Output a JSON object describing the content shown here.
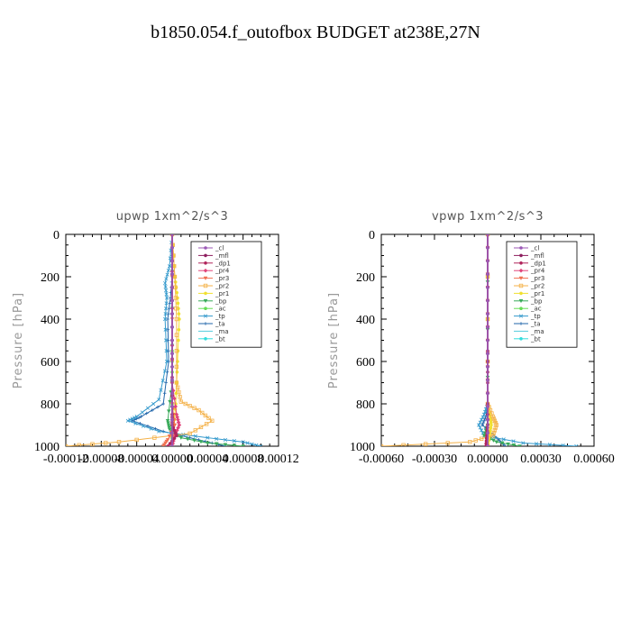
{
  "page_title": "b1850.054.f_outofbox  BUDGET at238E,27N",
  "colors": {
    "_cl": "#9b59b6",
    "_mfl": "#8e1f5f",
    "_dp1": "#b0245b",
    "_pr4": "#e0447a",
    "_pr3": "#f07050",
    "_pr2": "#f4b24a",
    "_pr1": "#f0e030",
    "_bp": "#3aaa5a",
    "_ac": "#66dd55",
    "_tp": "#3399cc",
    "_ta": "#2266aa",
    "_ma": "#55ccdd",
    "_bt": "#33dddd"
  },
  "chart_data": [
    {
      "type": "line",
      "title": "upwp   1xm^2/s^3",
      "ylabel": "Pressure [hPa]",
      "xlabel": "",
      "ylim": [
        1000,
        0
      ],
      "xlim": [
        -0.00012,
        0.00012
      ],
      "xtick_labels": [
        "-0.00012",
        "-0.00008",
        "-0.00004",
        "0.00000",
        "0.00004",
        "0.00008",
        "0.00012"
      ],
      "xticks": [
        -0.00012,
        -8e-05,
        -4e-05,
        0,
        4e-05,
        8e-05,
        0.00012
      ],
      "ytick_labels": [
        "0",
        "200",
        "400",
        "600",
        "800",
        "1000"
      ],
      "yticks": [
        0,
        200,
        400,
        600,
        800,
        1000
      ],
      "legend_position": "top-right",
      "series": [
        {
          "name": "_cl",
          "x": [
            0,
            0,
            0
          ],
          "y": [
            0,
            500,
            1000
          ]
        },
        {
          "name": "_mfl",
          "x": [
            0,
            0,
            0
          ],
          "y": [
            0,
            500,
            1000
          ]
        },
        {
          "name": "_dp1",
          "x": [
            0,
            0,
            0,
            0,
            5e-06,
            -5e-06
          ],
          "y": [
            0,
            500,
            850,
            900,
            950,
            1000
          ]
        },
        {
          "name": "_pr4",
          "x": [
            0,
            0,
            5e-06,
            8e-06,
            3e-06,
            0
          ],
          "y": [
            0,
            700,
            850,
            900,
            950,
            1000
          ]
        },
        {
          "name": "_pr3",
          "x": [
            0,
            0,
            3e-06,
            -5e-06,
            -1e-05
          ],
          "y": [
            0,
            800,
            900,
            970,
            1000
          ]
        },
        {
          "name": "_pr2",
          "x": [
            0,
            3e-06,
            5e-06,
            5e-06,
            1e-05,
            3e-05,
            4.5e-05,
            2e-05,
            -6e-05,
            -0.00012
          ],
          "y": [
            0,
            200,
            400,
            700,
            790,
            830,
            880,
            940,
            980,
            1000
          ]
        },
        {
          "name": "_pr1",
          "x": [
            0,
            3e-06,
            6e-06,
            8e-06,
            6e-06,
            4e-06,
            2e-06,
            0
          ],
          "y": [
            0,
            200,
            300,
            400,
            600,
            800,
            900,
            1000
          ]
        },
        {
          "name": "_bp",
          "x": [
            0,
            0,
            -5e-06,
            -3e-06,
            1e-05,
            4e-05,
            8e-05
          ],
          "y": [
            0,
            700,
            880,
            920,
            960,
            985,
            1000
          ]
        },
        {
          "name": "_ac",
          "x": [
            0,
            0,
            0,
            0
          ],
          "y": [
            0,
            500,
            900,
            1000
          ]
        },
        {
          "name": "_tp",
          "x": [
            0,
            -3e-06,
            -8e-06,
            -6e-06,
            -8e-06,
            -6e-06,
            -1.5e-05,
            -4e-05,
            -5e-05,
            -1.5e-05,
            4e-05,
            8e-05,
            0.0001
          ],
          "y": [
            0,
            150,
            230,
            300,
            400,
            600,
            780,
            860,
            880,
            930,
            960,
            980,
            1000
          ]
        },
        {
          "name": "_ta",
          "x": [
            0,
            0,
            -2e-06,
            -5e-06,
            -4e-06,
            -1e-05,
            -3.5e-05,
            -4.5e-05,
            -1e-05,
            3e-05,
            6e-05
          ],
          "y": [
            0,
            200,
            300,
            400,
            600,
            800,
            860,
            880,
            930,
            970,
            1000
          ]
        },
        {
          "name": "_ma",
          "x": [
            0,
            0,
            0
          ],
          "y": [
            0,
            500,
            1000
          ]
        },
        {
          "name": "_bt",
          "x": [
            0,
            0,
            0
          ],
          "y": [
            0,
            500,
            1000
          ]
        }
      ]
    },
    {
      "type": "line",
      "title": "vpwp   1xm^2/s^3",
      "ylabel": "Pressure [hPa]",
      "xlabel": "",
      "ylim": [
        1000,
        0
      ],
      "xlim": [
        -0.0006,
        0.0006
      ],
      "xtick_labels": [
        "-0.00060",
        "-0.00030",
        "0.00000",
        "0.00030",
        "0.00060"
      ],
      "xticks": [
        -0.0006,
        -0.0003,
        0,
        0.0003,
        0.0006
      ],
      "ytick_labels": [
        "0",
        "200",
        "400",
        "600",
        "800",
        "1000"
      ],
      "yticks": [
        0,
        200,
        400,
        600,
        800,
        1000
      ],
      "legend_position": "top-right",
      "series": [
        {
          "name": "_cl",
          "x": [
            0,
            0,
            0
          ],
          "y": [
            0,
            500,
            1000
          ]
        },
        {
          "name": "_mfl",
          "x": [
            0,
            0,
            0
          ],
          "y": [
            0,
            500,
            1000
          ]
        },
        {
          "name": "_dp1",
          "x": [
            0,
            0,
            0,
            -1e-05
          ],
          "y": [
            0,
            500,
            900,
            1000
          ]
        },
        {
          "name": "_pr4",
          "x": [
            0,
            0,
            0
          ],
          "y": [
            0,
            500,
            1000
          ]
        },
        {
          "name": "_pr3",
          "x": [
            0,
            0,
            0
          ],
          "y": [
            0,
            500,
            1000
          ]
        },
        {
          "name": "_pr2",
          "x": [
            0,
            0,
            3e-05,
            5e-05,
            3e-05,
            -0.0001,
            -0.0006
          ],
          "y": [
            0,
            800,
            860,
            900,
            950,
            980,
            1000
          ]
        },
        {
          "name": "_pr1",
          "x": [
            0,
            0,
            1.5e-05,
            2e-05,
            1e-05,
            0
          ],
          "y": [
            0,
            800,
            860,
            900,
            950,
            1000
          ]
        },
        {
          "name": "_bp",
          "x": [
            0,
            0,
            -2e-05,
            5e-05,
            0.00018
          ],
          "y": [
            0,
            900,
            950,
            980,
            1000
          ]
        },
        {
          "name": "_ac",
          "x": [
            0,
            0,
            0
          ],
          "y": [
            0,
            500,
            1000
          ]
        },
        {
          "name": "_tp",
          "x": [
            0,
            0,
            -2e-05,
            -5e-05,
            -2e-05,
            0.0002,
            0.0005
          ],
          "y": [
            0,
            800,
            850,
            900,
            950,
            985,
            1000
          ]
        },
        {
          "name": "_ta",
          "x": [
            0,
            0,
            -1e-05,
            -3e-05,
            5e-05,
            0.0001
          ],
          "y": [
            0,
            800,
            860,
            900,
            960,
            1000
          ]
        },
        {
          "name": "_ma",
          "x": [
            0,
            0,
            0
          ],
          "y": [
            0,
            500,
            1000
          ]
        },
        {
          "name": "_bt",
          "x": [
            0,
            0,
            0
          ],
          "y": [
            0,
            500,
            1000
          ]
        }
      ]
    }
  ]
}
